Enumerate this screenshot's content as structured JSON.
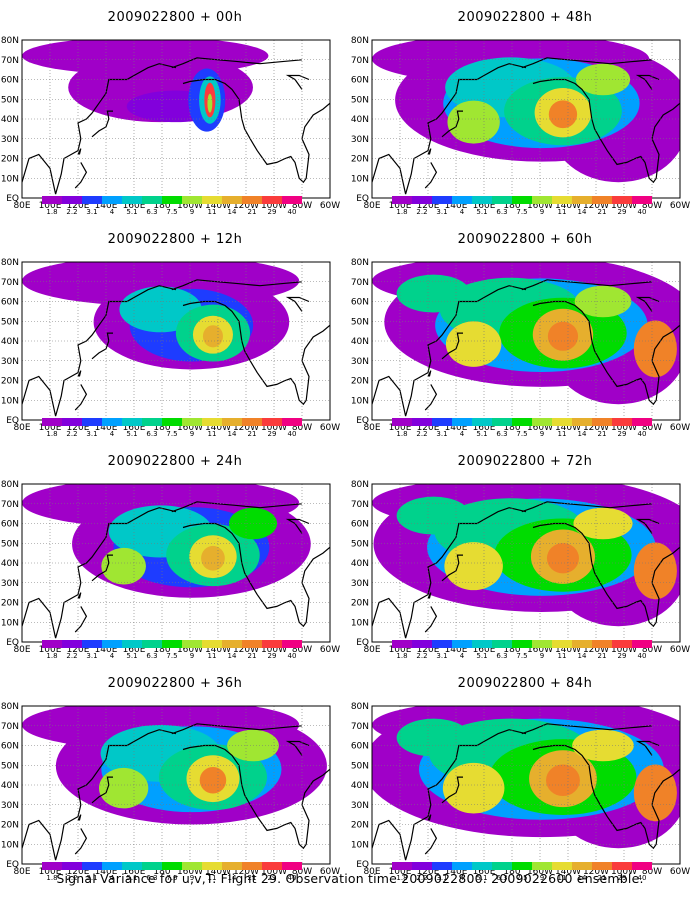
{
  "caption": "Signal Variance for u,v,T. Flight 29. Observation time 2009022800. 2009022600 ensemble.",
  "chart_data": {
    "type": "heatmap",
    "caption": "Signal Variance for u,v,T. Flight 29. Observation time 2009022800. 2009022600 ensemble.",
    "x_ticks": [
      "80E",
      "100E",
      "120E",
      "140E",
      "160E",
      "180",
      "160W",
      "140W",
      "120W",
      "100W",
      "80W",
      "60W"
    ],
    "y_ticks": [
      "EQ",
      "10N",
      "20N",
      "30N",
      "40N",
      "50N",
      "60N",
      "70N",
      "80N"
    ],
    "xlim": [
      "80E",
      "60W"
    ],
    "ylim": [
      "EQ",
      "80N"
    ],
    "grid": true,
    "colorbar": {
      "levels": [
        "1.8",
        "2.2",
        "3.1",
        "4",
        "5.1",
        "6.3",
        "7.5",
        "9",
        "11",
        "14",
        "21",
        "29",
        "40"
      ],
      "colors": [
        "#a000c8",
        "#8200dc",
        "#1e3cff",
        "#00a0ff",
        "#00c8c8",
        "#00d28c",
        "#00dc00",
        "#a0e632",
        "#e6dc32",
        "#e6af2d",
        "#f08228",
        "#fa3c3c",
        "#f00082"
      ]
    },
    "panels": [
      {
        "title": "2009022800 + 00h",
        "col": 0,
        "row": 0,
        "intensity": 0.0
      },
      {
        "title": "2009022800 + 12h",
        "col": 0,
        "row": 1,
        "intensity": 0.25
      },
      {
        "title": "2009022800 + 24h",
        "col": 0,
        "row": 2,
        "intensity": 0.45
      },
      {
        "title": "2009022800 + 36h",
        "col": 0,
        "row": 3,
        "intensity": 0.6
      },
      {
        "title": "2009022800 + 48h",
        "col": 1,
        "row": 0,
        "intensity": 0.7
      },
      {
        "title": "2009022800 + 60h",
        "col": 1,
        "row": 1,
        "intensity": 0.8
      },
      {
        "title": "2009022800 + 72h",
        "col": 1,
        "row": 2,
        "intensity": 0.9
      },
      {
        "title": "2009022800 + 84h",
        "col": 1,
        "row": 3,
        "intensity": 1.0
      }
    ]
  }
}
